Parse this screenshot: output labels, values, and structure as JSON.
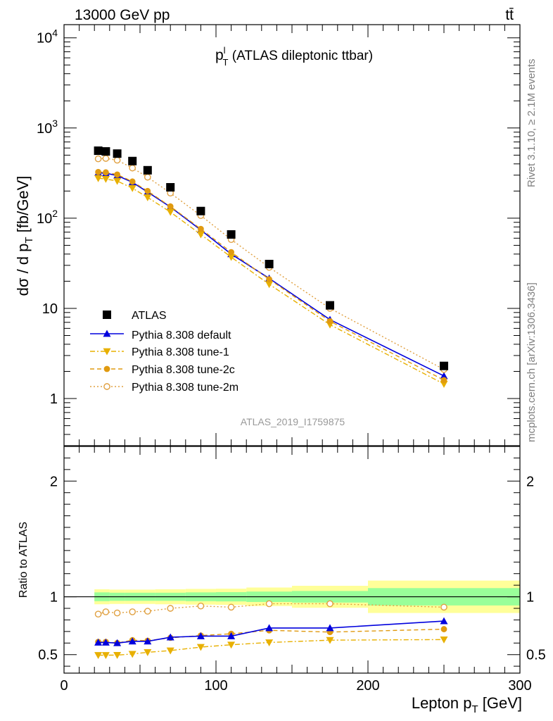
{
  "header": {
    "energy_label": "13000 GeV pp",
    "process_label": "tt̄"
  },
  "side_labels": {
    "rivet": "Rivet 3.1.10, ≥ 2.1M events",
    "mcplots": "mcplots.cern.ch [arXiv:1306.3436]"
  },
  "chart_data": [
    {
      "type": "line",
      "panel": "main",
      "title_main": "p",
      "title_sup": "l",
      "title_sub": "T",
      "title_rest": " (ATLAS dileptonic ttbar)",
      "ylabel_main": "dσ / d p",
      "ylabel_sub": "T",
      "ylabel_unit": " [fb/GeV]",
      "watermark": "ATLAS_2019_I1759875",
      "yscale": "log",
      "xlim": [
        0,
        300
      ],
      "ylim": [
        0.3,
        14000
      ],
      "legend_position": "lower-left",
      "x": [
        22.5,
        27.5,
        35,
        45,
        55,
        70,
        90,
        110,
        135,
        175,
        250
      ],
      "series": [
        {
          "name": "ATLAS",
          "color": "#000000",
          "marker": "square",
          "line": "none",
          "values": [
            560,
            550,
            520,
            430,
            340,
            220,
            120,
            66,
            31,
            10.8,
            2.3
          ]
        },
        {
          "name": "Pythia 8.308 default",
          "color": "#0000dd",
          "marker": "triangle-up",
          "line": "solid",
          "values": [
            318,
            315,
            297,
            250,
            195,
            133,
            74,
            40,
            21.5,
            7.5,
            1.78
          ]
        },
        {
          "name": "Pythia 8.308 tune-1",
          "color": "#e8b000",
          "marker": "triangle-down",
          "line": "dashdot",
          "values": [
            277,
            272,
            258,
            215,
            170,
            117,
            66,
            37,
            18.5,
            6.6,
            1.45
          ]
        },
        {
          "name": "Pythia 8.308 tune-2c",
          "color": "#e09a10",
          "marker": "circle",
          "line": "dashed",
          "values": [
            325,
            322,
            305,
            255,
            200,
            135,
            76,
            42,
            21,
            7.2,
            1.6
          ]
        },
        {
          "name": "Pythia 8.308 tune-2m",
          "color": "#e0a040",
          "marker": "open-circle",
          "line": "dotted",
          "values": [
            455,
            460,
            440,
            360,
            285,
            190,
            107,
            58,
            28.5,
            10,
            2.1
          ]
        }
      ],
      "y_ticks": [
        {
          "base": "10",
          "exp": "4"
        },
        {
          "base": "10",
          "exp": "3"
        },
        {
          "base": "10",
          "exp": "2"
        },
        {
          "base": "10",
          "exp": ""
        },
        {
          "base": "1",
          "exp": ""
        }
      ]
    },
    {
      "type": "line",
      "panel": "ratio",
      "ylabel": "Ratio to ATLAS",
      "xlabel_main": "Lepton p",
      "xlabel_sub": "T",
      "xlabel_unit": " [GeV]",
      "xlim": [
        0,
        300
      ],
      "ylim": [
        0.34,
        2.3
      ],
      "x_tick_labels": [
        "0",
        "100",
        "200",
        "300"
      ],
      "y_tick_labels": [
        "0.5",
        "1",
        "2"
      ],
      "bins": [
        [
          20,
          25
        ],
        [
          25,
          30
        ],
        [
          30,
          40
        ],
        [
          40,
          50
        ],
        [
          50,
          60
        ],
        [
          60,
          80
        ],
        [
          80,
          100
        ],
        [
          100,
          120
        ],
        [
          120,
          150
        ],
        [
          150,
          200
        ],
        [
          200,
          300
        ]
      ],
      "band_inner": [
        0.038,
        0.038,
        0.035,
        0.035,
        0.035,
        0.035,
        0.038,
        0.04,
        0.045,
        0.05,
        0.075
      ],
      "band_outer": [
        0.065,
        0.065,
        0.062,
        0.062,
        0.062,
        0.065,
        0.068,
        0.07,
        0.08,
        0.095,
        0.14
      ],
      "x": [
        22.5,
        27.5,
        35,
        45,
        55,
        70,
        90,
        110,
        135,
        175,
        250
      ],
      "series": [
        {
          "name": "Pythia 8.308 default",
          "color": "#0000dd",
          "marker": "triangle-up",
          "line": "solid",
          "values": [
            0.605,
            0.605,
            0.6,
            0.615,
            0.615,
            0.65,
            0.66,
            0.66,
            0.73,
            0.73,
            0.79
          ]
        },
        {
          "name": "Pythia 8.308 tune-1",
          "color": "#e8b000",
          "marker": "triangle-down",
          "line": "dashdot",
          "values": [
            0.495,
            0.495,
            0.496,
            0.505,
            0.52,
            0.535,
            0.565,
            0.585,
            0.605,
            0.625,
            0.63
          ]
        },
        {
          "name": "Pythia 8.308 tune-2c",
          "color": "#e09a10",
          "marker": "circle",
          "line": "dashed",
          "values": [
            0.61,
            0.61,
            0.6,
            0.625,
            0.62,
            0.645,
            0.665,
            0.68,
            0.71,
            0.695,
            0.72
          ]
        },
        {
          "name": "Pythia 8.308 tune-2m",
          "color": "#e0a040",
          "marker": "open-circle",
          "line": "dotted",
          "values": [
            0.85,
            0.87,
            0.86,
            0.87,
            0.875,
            0.9,
            0.92,
            0.91,
            0.94,
            0.94,
            0.91
          ]
        }
      ]
    }
  ]
}
